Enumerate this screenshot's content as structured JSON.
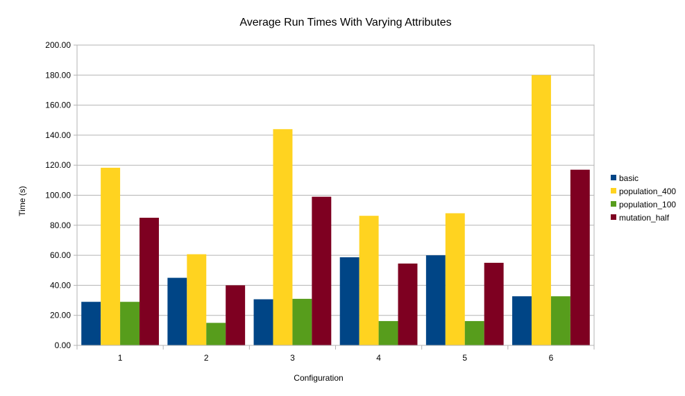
{
  "chart_data": {
    "type": "bar",
    "title": "Average Run Times With Varying Attributes",
    "xlabel": "Configuration",
    "ylabel": "Time (s)",
    "categories": [
      "1",
      "2",
      "3",
      "4",
      "5",
      "6"
    ],
    "ylim": [
      0,
      200
    ],
    "y_ticks": [
      "0.00",
      "20.00",
      "40.00",
      "60.00",
      "80.00",
      "100.00",
      "120.00",
      "140.00",
      "160.00",
      "180.00",
      "200.00"
    ],
    "grid": true,
    "legend_position": "right",
    "series": [
      {
        "name": "basic",
        "color": "#004586",
        "values": [
          29.0,
          45.0,
          30.7,
          58.7,
          60.0,
          32.7
        ]
      },
      {
        "name": "population_400",
        "color": "#ffd320",
        "values": [
          118.3,
          60.7,
          144.0,
          86.3,
          88.0,
          180.0
        ]
      },
      {
        "name": "population_100",
        "color": "#579d1c",
        "values": [
          29.0,
          15.0,
          31.0,
          16.2,
          16.2,
          32.7
        ]
      },
      {
        "name": "mutation_half",
        "color": "#7e0021",
        "values": [
          85.0,
          40.0,
          99.0,
          54.5,
          55.0,
          117.0
        ]
      }
    ]
  }
}
